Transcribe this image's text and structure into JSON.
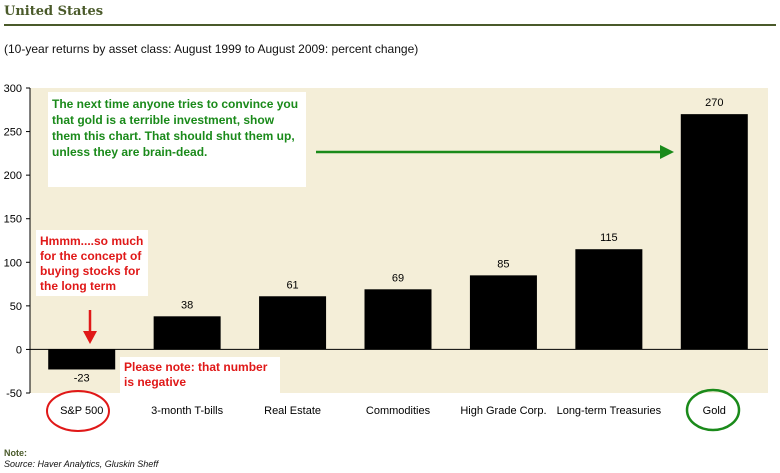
{
  "header": {
    "title": "United States"
  },
  "chart_data": {
    "type": "bar",
    "subtitle": "(10-year returns by asset class: August 1999 to August 2009: percent change)",
    "categories": [
      "S&P 500",
      "3-month T-bills",
      "Real Estate",
      "Commodities",
      "High Grade Corp.",
      "Long-term Treasuries",
      "Gold"
    ],
    "values": [
      -23,
      38,
      61,
      69,
      85,
      115,
      270
    ],
    "data_labels": [
      "-23",
      "38",
      "61",
      "69",
      "85",
      "115",
      "270"
    ],
    "ylim": [
      -50,
      300
    ],
    "yticks": [
      -50,
      0,
      50,
      100,
      150,
      200,
      250,
      300
    ],
    "grid": false,
    "colors": {
      "bar": "#000000",
      "plot_background": "#f4eed8",
      "annotation_green": "#1a8a1a",
      "annotation_red": "#e01818"
    },
    "annotations": {
      "green_text": [
        "The next time anyone tries to convince you",
        "that gold is a terrible investment, show",
        "them this chart.  That should shut them up,",
        "unless they are brain-dead."
      ],
      "red_text_top": [
        "Hmmm....so much",
        "for the concept of",
        "buying stocks for",
        "the long term"
      ],
      "red_text_bottom": [
        "Please note:  that number",
        "is negative"
      ]
    }
  },
  "footer": {
    "note_label": "Note:",
    "source": "Source: Haver Analytics, Gluskin Sheff"
  }
}
